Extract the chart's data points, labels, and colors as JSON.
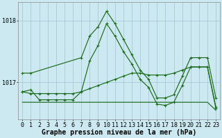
{
  "xlabel": "Graphe pression niveau de la mer (hPa)",
  "bg_color": "#cce8f0",
  "grid_color": "#99bbcc",
  "line_color": "#1a6b1a",
  "ymin": 1016.4,
  "ymax": 1018.3,
  "yticks": [
    1017,
    1018
  ],
  "xticks": [
    0,
    1,
    2,
    3,
    4,
    5,
    6,
    7,
    8,
    9,
    10,
    11,
    12,
    13,
    14,
    15,
    16,
    17,
    18,
    19,
    20,
    21,
    22,
    23
  ],
  "line1": [
    1017.15,
    1017.15,
    null,
    null,
    null,
    null,
    null,
    1017.4,
    1017.75,
    1017.9,
    1018.15,
    1017.95,
    1017.7,
    1017.45,
    1017.2,
    1017.05,
    1016.75,
    1016.75,
    1016.8,
    1017.1,
    1017.4,
    1017.4,
    1017.4,
    1016.75
  ],
  "line1_x": [
    0,
    1,
    7,
    8,
    9,
    10,
    11,
    12,
    13,
    14,
    15,
    16,
    17,
    18,
    19,
    20,
    21,
    22,
    23
  ],
  "line1_y": [
    1017.15,
    1017.15,
    1017.4,
    1017.75,
    1017.9,
    1018.15,
    1017.95,
    1017.7,
    1017.45,
    1017.2,
    1017.05,
    1016.75,
    1016.75,
    1016.8,
    1017.1,
    1017.4,
    1017.4,
    1017.4,
    1016.75
  ],
  "line2_x": [
    0,
    1,
    2,
    3,
    4,
    5,
    6,
    7,
    8,
    9,
    10,
    11,
    12,
    13,
    14,
    15,
    16,
    17,
    18,
    19,
    20,
    21,
    22,
    23
  ],
  "line2_y": [
    1016.85,
    1016.88,
    1016.72,
    1016.72,
    1016.72,
    1016.72,
    1016.72,
    1016.85,
    1017.35,
    1017.6,
    1017.95,
    1017.75,
    1017.5,
    1017.3,
    1017.05,
    1016.92,
    1016.65,
    1016.63,
    1016.68,
    1016.95,
    1017.25,
    1017.25,
    1017.25,
    1016.58
  ],
  "line3_x": [
    0,
    1,
    2,
    3,
    4,
    5,
    6,
    7,
    8,
    9,
    10,
    11,
    12,
    13,
    14,
    15,
    16,
    17,
    18,
    19,
    20,
    21,
    22,
    23
  ],
  "line3_y": [
    1016.85,
    1016.82,
    1016.82,
    1016.82,
    1016.82,
    1016.82,
    1016.82,
    1016.85,
    1016.9,
    1016.95,
    1017.0,
    1017.05,
    1017.1,
    1017.15,
    1017.15,
    1017.12,
    1017.12,
    1017.12,
    1017.15,
    1017.2,
    1017.25,
    1017.25,
    1017.25,
    1016.6
  ],
  "line4_x": [
    0,
    1,
    2,
    3,
    4,
    5,
    6,
    7,
    8,
    9,
    10,
    11,
    12,
    13,
    14,
    15,
    16,
    17,
    18,
    19,
    20,
    21,
    22,
    23
  ],
  "line4_y": [
    1016.68,
    1016.68,
    1016.68,
    1016.68,
    1016.68,
    1016.68,
    1016.68,
    1016.68,
    1016.68,
    1016.68,
    1016.68,
    1016.68,
    1016.68,
    1016.68,
    1016.68,
    1016.68,
    1016.68,
    1016.68,
    1016.68,
    1016.68,
    1016.68,
    1016.68,
    1016.68,
    1016.55
  ],
  "fontsize_label": 7.0,
  "fontsize_tick": 6.0
}
